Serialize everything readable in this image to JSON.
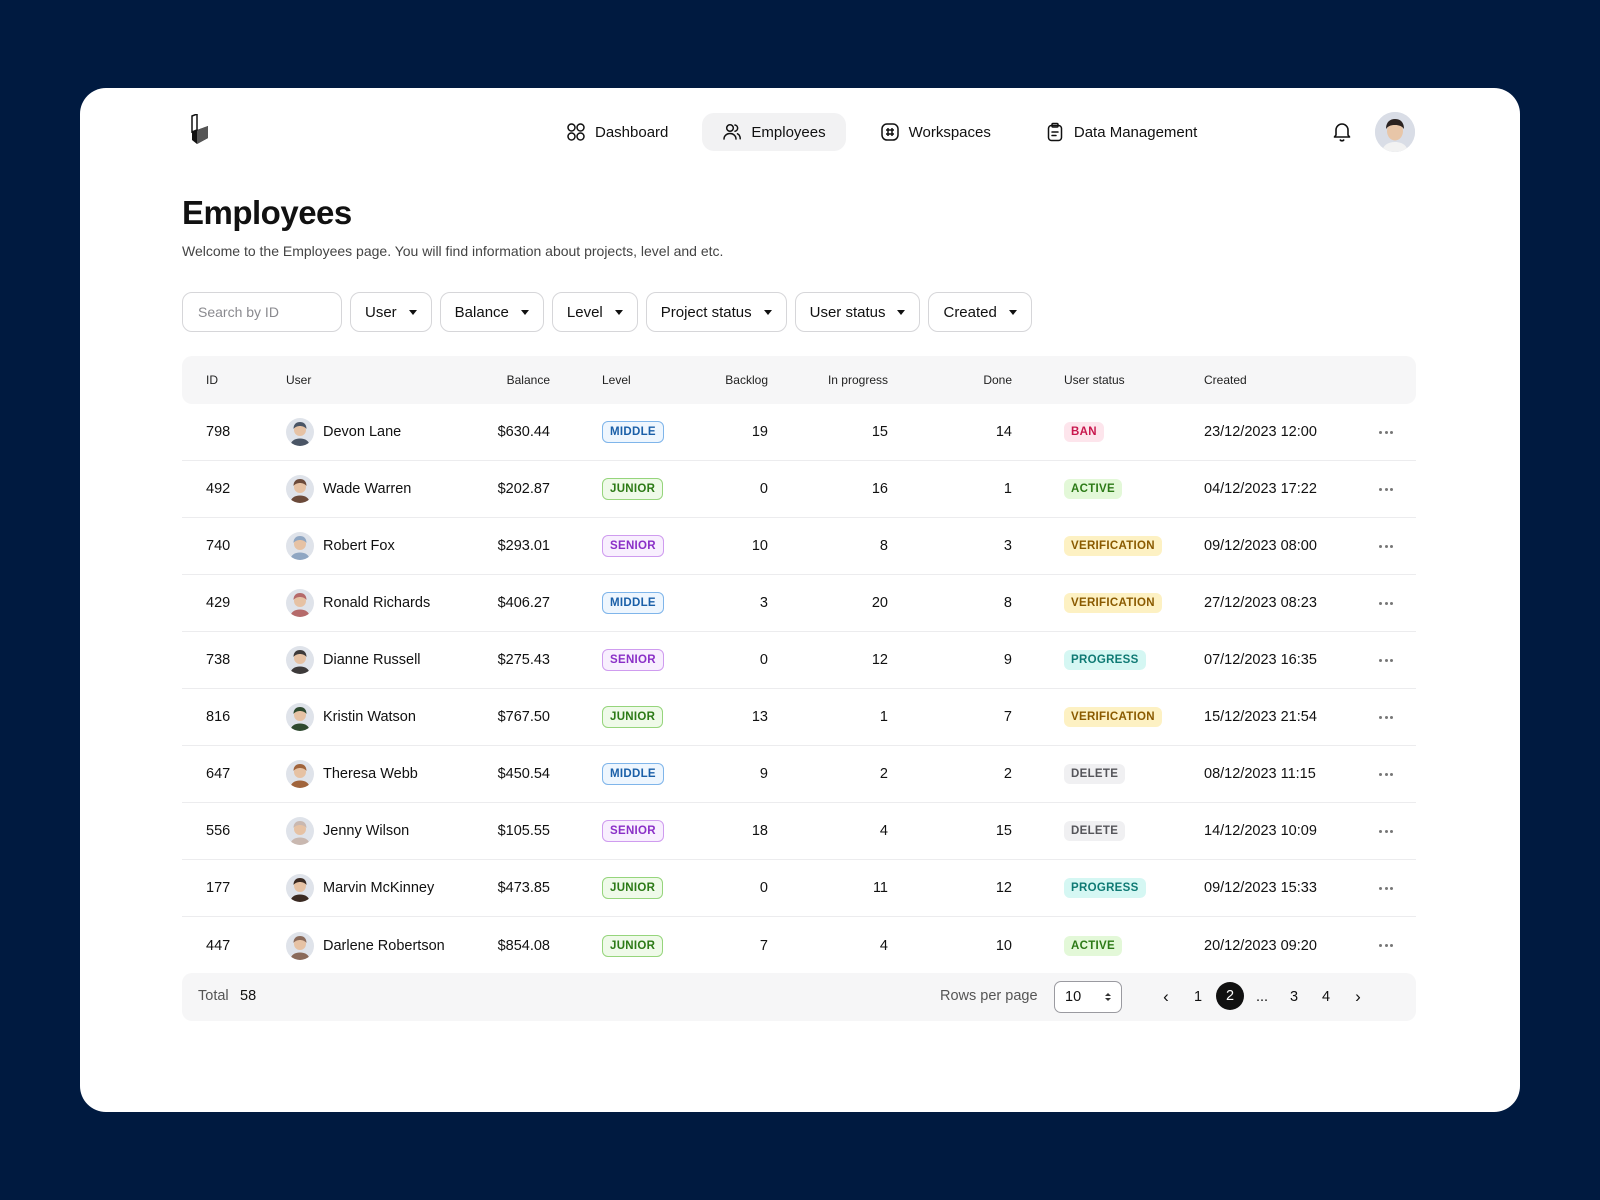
{
  "nav": {
    "items": [
      {
        "label": "Dashboard",
        "icon": "grid-icon",
        "active": false
      },
      {
        "label": "Employees",
        "icon": "users-icon",
        "active": true
      },
      {
        "label": "Workspaces",
        "icon": "workspace-icon",
        "active": false
      },
      {
        "label": "Data Management",
        "icon": "clipboard-icon",
        "active": false
      }
    ]
  },
  "page": {
    "title": "Employees",
    "description": "Welcome to the Employees page. You will find information about projects, level and etc."
  },
  "filters": {
    "search_placeholder": "Search by ID",
    "dropdowns": [
      "User",
      "Balance",
      "Level",
      "Project status",
      "User status",
      "Created"
    ]
  },
  "table": {
    "headers": {
      "id": "ID",
      "user": "User",
      "balance": "Balance",
      "level": "Level",
      "backlog": "Backlog",
      "in_progress": "In progress",
      "done": "Done",
      "user_status": "User status",
      "created": "Created"
    },
    "rows": [
      {
        "id": "798",
        "name": "Devon Lane",
        "balance": "$630.44",
        "level": "MIDDLE",
        "backlog": "19",
        "in_progress": "15",
        "done": "14",
        "status": "BAN",
        "created": "23/12/2023 12:00",
        "avatar_color": "#4a5565"
      },
      {
        "id": "492",
        "name": "Wade Warren",
        "balance": "$202.87",
        "level": "JUNIOR",
        "backlog": "0",
        "in_progress": "16",
        "done": "1",
        "status": "ACTIVE",
        "created": "04/12/2023 17:22",
        "avatar_color": "#6b4a3a"
      },
      {
        "id": "740",
        "name": "Robert Fox",
        "balance": "$293.01",
        "level": "SENIOR",
        "backlog": "10",
        "in_progress": "8",
        "done": "3",
        "status": "VERIFICATION",
        "created": "09/12/2023 08:00",
        "avatar_color": "#8fa6c2"
      },
      {
        "id": "429",
        "name": "Ronald Richards",
        "balance": "$406.27",
        "level": "MIDDLE",
        "backlog": "3",
        "in_progress": "20",
        "done": "8",
        "status": "VERIFICATION",
        "created": "27/12/2023 08:23",
        "avatar_color": "#b56a6a"
      },
      {
        "id": "738",
        "name": "Dianne Russell",
        "balance": "$275.43",
        "level": "SENIOR",
        "backlog": "0",
        "in_progress": "12",
        "done": "9",
        "status": "PROGRESS",
        "created": "07/12/2023 16:35",
        "avatar_color": "#3d3a3a"
      },
      {
        "id": "816",
        "name": "Kristin Watson",
        "balance": "$767.50",
        "level": "JUNIOR",
        "backlog": "13",
        "in_progress": "1",
        "done": "7",
        "status": "VERIFICATION",
        "created": "15/12/2023 21:54",
        "avatar_color": "#2f4a2f"
      },
      {
        "id": "647",
        "name": "Theresa Webb",
        "balance": "$450.54",
        "level": "MIDDLE",
        "backlog": "9",
        "in_progress": "2",
        "done": "2",
        "status": "DELETE",
        "created": "08/12/2023 11:15",
        "avatar_color": "#a0643c"
      },
      {
        "id": "556",
        "name": "Jenny Wilson",
        "balance": "$105.55",
        "level": "SENIOR",
        "backlog": "18",
        "in_progress": "4",
        "done": "15",
        "status": "DELETE",
        "created": "14/12/2023 10:09",
        "avatar_color": "#c9b8b0"
      },
      {
        "id": "177",
        "name": "Marvin McKinney",
        "balance": "$473.85",
        "level": "JUNIOR",
        "backlog": "0",
        "in_progress": "11",
        "done": "12",
        "status": "PROGRESS",
        "created": "09/12/2023 15:33",
        "avatar_color": "#3a2a22"
      },
      {
        "id": "447",
        "name": "Darlene Robertson",
        "balance": "$854.08",
        "level": "JUNIOR",
        "backlog": "7",
        "in_progress": "4",
        "done": "10",
        "status": "ACTIVE",
        "created": "20/12/2023 09:20",
        "avatar_color": "#8a6a5a"
      }
    ]
  },
  "footer": {
    "total_label": "Total",
    "total_value": "58",
    "rows_per_page_label": "Rows per page",
    "rows_per_page_value": "10",
    "pages": [
      "1",
      "2",
      "...",
      "3",
      "4"
    ],
    "current_page": "2"
  }
}
